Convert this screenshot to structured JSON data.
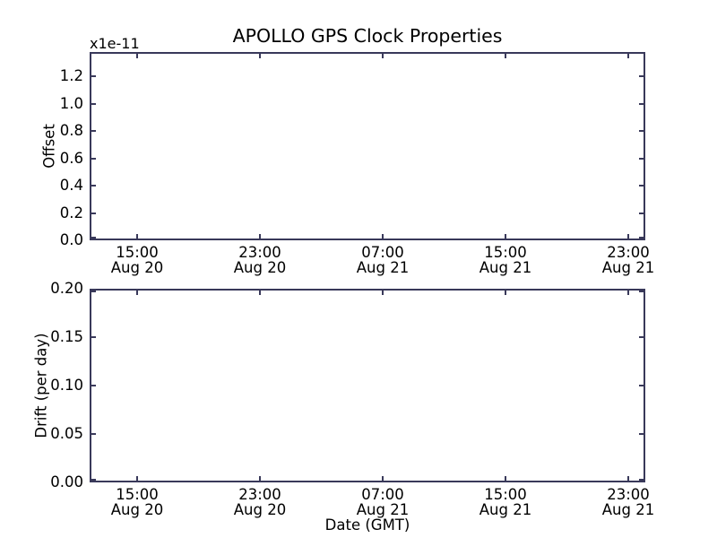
{
  "title": "APOLLO GPS Clock Properties",
  "xlabel": "Date (GMT)",
  "top_plot": {
    "ylabel": "Offset",
    "y_multiplier": "x1e-11",
    "yticks": [
      "0.0",
      "0.2",
      "0.4",
      "0.6",
      "0.8",
      "1.0",
      "1.2"
    ]
  },
  "bottom_plot": {
    "ylabel": "Drift (per day)",
    "yticks": [
      "0.00",
      "0.05",
      "0.10",
      "0.15",
      "0.20"
    ]
  },
  "xticks": [
    {
      "time": "15:00",
      "date": "Aug 20"
    },
    {
      "time": "23:00",
      "date": "Aug 20"
    },
    {
      "time": "07:00",
      "date": "Aug 21"
    },
    {
      "time": "15:00",
      "date": "Aug 21"
    },
    {
      "time": "23:00",
      "date": "Aug 21"
    }
  ],
  "colors": {
    "spine": "#39395a",
    "text": "#000000",
    "background": "#ffffff"
  },
  "chart_data": [
    {
      "type": "line",
      "title": "APOLLO GPS Clock Properties",
      "ylabel": "Offset",
      "y_scale_multiplier_label": "x1e-11",
      "ylim": [
        0.0,
        1.35
      ],
      "yticks": [
        0.0,
        0.2,
        0.4,
        0.6,
        0.8,
        1.0,
        1.2
      ],
      "xtick_labels": [
        "15:00 Aug 20",
        "23:00 Aug 20",
        "07:00 Aug 21",
        "15:00 Aug 21",
        "23:00 Aug 21"
      ],
      "grid": false,
      "legend": "none",
      "series": []
    },
    {
      "type": "line",
      "ylabel": "Drift (per day)",
      "xlabel": "Date (GMT)",
      "ylim": [
        0.0,
        0.2
      ],
      "yticks": [
        0.0,
        0.05,
        0.1,
        0.15,
        0.2
      ],
      "xtick_labels": [
        "15:00 Aug 20",
        "23:00 Aug 20",
        "07:00 Aug 21",
        "15:00 Aug 21",
        "23:00 Aug 21"
      ],
      "grid": false,
      "legend": "none",
      "series": []
    }
  ]
}
